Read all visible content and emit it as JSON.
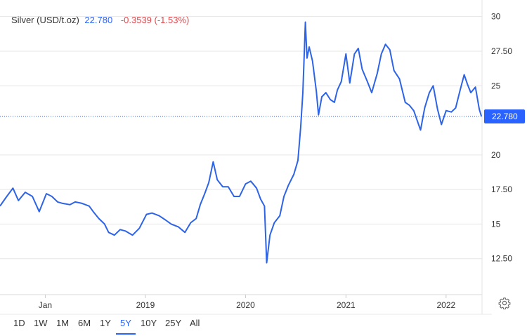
{
  "header": {
    "instrument": "Silver (USD/t.oz)",
    "price": "22.780",
    "change": "-0.3539 (-1.53%)"
  },
  "range_buttons": [
    {
      "label": "1D",
      "active": false
    },
    {
      "label": "1W",
      "active": false
    },
    {
      "label": "1M",
      "active": false
    },
    {
      "label": "6M",
      "active": false
    },
    {
      "label": "1Y",
      "active": false
    },
    {
      "label": "5Y",
      "active": true
    },
    {
      "label": "10Y",
      "active": false
    },
    {
      "label": "25Y",
      "active": false
    },
    {
      "label": "All",
      "active": false
    }
  ],
  "icons": {
    "settings": "gear-icon"
  },
  "colors": {
    "line": "#2d63e6",
    "price_tag": "#2962ff",
    "change_negative": "#e5484d"
  },
  "chart_data": {
    "type": "line",
    "title": "Silver (USD/t.oz)",
    "x_ticks": [
      "Jan",
      "2019",
      "2020",
      "2021",
      "2022"
    ],
    "y_ticks": [
      "12.50",
      "15",
      "17.50",
      "20",
      "22.780",
      "25",
      "27.50",
      "30"
    ],
    "ylim": [
      9.9,
      31.2
    ],
    "xlim": [
      "2017-07-20",
      "2022-05-12"
    ],
    "last_value": 22.78,
    "last_value_label": "22.780",
    "y_axis_position": "right",
    "grid": "horizontal",
    "series": [
      {
        "x": [
          "2017-07-20",
          "2017-08-10",
          "2017-09-05",
          "2017-09-25",
          "2017-10-20",
          "2017-11-15",
          "2017-12-10",
          "2018-01-05",
          "2018-01-25",
          "2018-02-15",
          "2018-03-05",
          "2018-04-01",
          "2018-04-20",
          "2018-05-15",
          "2018-06-10",
          "2018-06-25",
          "2018-07-15",
          "2018-08-05",
          "2018-08-20",
          "2018-09-10",
          "2018-10-01",
          "2018-10-20",
          "2018-11-15",
          "2018-12-10",
          "2019-01-05",
          "2019-01-25",
          "2019-02-20",
          "2019-03-15",
          "2019-04-05",
          "2019-05-01",
          "2019-05-25",
          "2019-06-15",
          "2019-07-05",
          "2019-07-20",
          "2019-08-05",
          "2019-08-20",
          "2019-09-05",
          "2019-09-20",
          "2019-10-10",
          "2019-10-30",
          "2019-11-20",
          "2019-12-10",
          "2020-01-01",
          "2020-01-20",
          "2020-02-10",
          "2020-02-25",
          "2020-03-10",
          "2020-03-18",
          "2020-03-30",
          "2020-04-15",
          "2020-05-05",
          "2020-05-20",
          "2020-06-05",
          "2020-06-25",
          "2020-07-10",
          "2020-07-20",
          "2020-07-28",
          "2020-08-06",
          "2020-08-12",
          "2020-08-20",
          "2020-09-01",
          "2020-09-15",
          "2020-09-23",
          "2020-10-05",
          "2020-10-20",
          "2020-11-05",
          "2020-11-20",
          "2020-12-01",
          "2020-12-15",
          "2021-01-01",
          "2021-01-15",
          "2021-02-01",
          "2021-02-15",
          "2021-03-01",
          "2021-03-20",
          "2021-04-05",
          "2021-04-25",
          "2021-05-10",
          "2021-05-25",
          "2021-06-10",
          "2021-06-25",
          "2021-07-15",
          "2021-08-05",
          "2021-08-20",
          "2021-09-05",
          "2021-09-30",
          "2021-10-15",
          "2021-11-01",
          "2021-11-15",
          "2021-12-01",
          "2021-12-15",
          "2022-01-01",
          "2022-01-20",
          "2022-02-05",
          "2022-02-20",
          "2022-03-08",
          "2022-03-20",
          "2022-04-01",
          "2022-04-18",
          "2022-05-02",
          "2022-05-10"
        ],
        "y": [
          16.3,
          16.9,
          17.6,
          16.7,
          17.3,
          17.0,
          15.9,
          17.2,
          17.0,
          16.6,
          16.5,
          16.4,
          16.6,
          16.5,
          16.3,
          15.9,
          15.4,
          15.0,
          14.4,
          14.2,
          14.6,
          14.5,
          14.2,
          14.7,
          15.7,
          15.8,
          15.6,
          15.3,
          15.0,
          14.8,
          14.4,
          15.1,
          15.4,
          16.4,
          17.2,
          18.0,
          19.5,
          18.2,
          17.7,
          17.7,
          17.0,
          17.0,
          17.9,
          18.1,
          17.6,
          16.8,
          16.3,
          12.2,
          14.2,
          15.1,
          15.6,
          17.0,
          17.8,
          18.6,
          19.6,
          22.0,
          24.5,
          29.6,
          27.0,
          27.8,
          26.8,
          24.6,
          22.9,
          24.2,
          24.5,
          24.0,
          23.8,
          24.7,
          25.3,
          27.3,
          25.2,
          27.3,
          27.7,
          26.2,
          25.3,
          24.5,
          25.9,
          27.3,
          28.0,
          27.6,
          26.1,
          25.5,
          23.8,
          23.6,
          23.2,
          21.8,
          23.4,
          24.5,
          25.0,
          23.3,
          22.2,
          23.2,
          23.1,
          23.4,
          24.6,
          25.8,
          25.1,
          24.5,
          24.9,
          23.3,
          22.78
        ]
      }
    ]
  }
}
